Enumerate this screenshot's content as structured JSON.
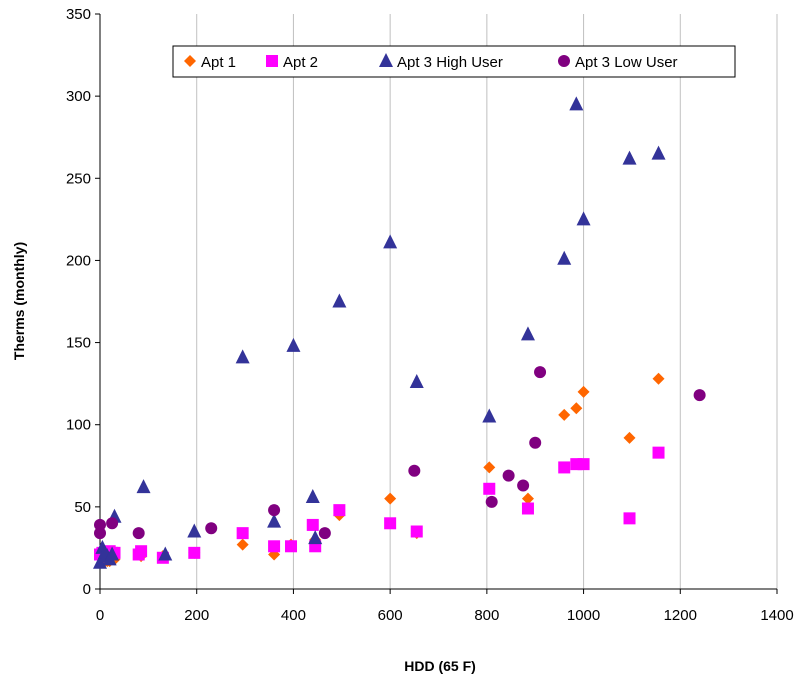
{
  "chart_data": {
    "type": "scatter",
    "xlabel": "HDD (65 F)",
    "ylabel": "Therms (monthly)",
    "xlim": [
      0,
      1400
    ],
    "ylim": [
      0,
      350
    ],
    "x_ticks": [
      0,
      200,
      400,
      600,
      800,
      1000,
      1200,
      1400
    ],
    "y_ticks": [
      0,
      50,
      100,
      150,
      200,
      250,
      300,
      350
    ],
    "x_tick_labels": [
      "0",
      "200",
      "400",
      "600",
      "800",
      "1000",
      "1200",
      "1400"
    ],
    "y_tick_labels": [
      "0",
      "50",
      "100",
      "150",
      "200",
      "250",
      "300",
      "350"
    ],
    "grid": "vertical",
    "legend_position": "top",
    "series": [
      {
        "name": "Apt 1",
        "marker": "diamond",
        "color": "#FF6600",
        "points": [
          [
            0,
            21
          ],
          [
            5,
            18
          ],
          [
            10,
            17
          ],
          [
            15,
            17
          ],
          [
            20,
            17
          ],
          [
            25,
            19
          ],
          [
            30,
            18
          ],
          [
            85,
            20
          ],
          [
            130,
            20
          ],
          [
            195,
            22
          ],
          [
            295,
            27
          ],
          [
            360,
            21
          ],
          [
            395,
            27
          ],
          [
            445,
            30
          ],
          [
            495,
            45
          ],
          [
            600,
            55
          ],
          [
            655,
            34
          ],
          [
            805,
            74
          ],
          [
            885,
            55
          ],
          [
            960,
            106
          ],
          [
            985,
            110
          ],
          [
            1000,
            120
          ],
          [
            1095,
            92
          ],
          [
            1155,
            128
          ]
        ]
      },
      {
        "name": "Apt 2",
        "marker": "square",
        "color": "#FF00FF",
        "points": [
          [
            0,
            21
          ],
          [
            5,
            22
          ],
          [
            10,
            21
          ],
          [
            15,
            20
          ],
          [
            20,
            23
          ],
          [
            25,
            22
          ],
          [
            30,
            22
          ],
          [
            80,
            21
          ],
          [
            85,
            23
          ],
          [
            130,
            19
          ],
          [
            195,
            22
          ],
          [
            295,
            34
          ],
          [
            360,
            26
          ],
          [
            395,
            26
          ],
          [
            440,
            39
          ],
          [
            445,
            26
          ],
          [
            495,
            48
          ],
          [
            600,
            40
          ],
          [
            655,
            35
          ],
          [
            805,
            61
          ],
          [
            885,
            49
          ],
          [
            960,
            74
          ],
          [
            985,
            76
          ],
          [
            1000,
            76
          ],
          [
            1095,
            43
          ],
          [
            1155,
            83
          ]
        ]
      },
      {
        "name": "Apt 3 High User",
        "marker": "triangle",
        "color": "#333399",
        "points": [
          [
            0,
            16
          ],
          [
            5,
            25
          ],
          [
            10,
            22
          ],
          [
            15,
            20
          ],
          [
            20,
            18
          ],
          [
            25,
            21
          ],
          [
            30,
            44
          ],
          [
            90,
            62
          ],
          [
            135,
            21
          ],
          [
            195,
            35
          ],
          [
            295,
            141
          ],
          [
            360,
            41
          ],
          [
            400,
            148
          ],
          [
            440,
            56
          ],
          [
            445,
            31
          ],
          [
            495,
            175
          ],
          [
            600,
            211
          ],
          [
            655,
            126
          ],
          [
            805,
            105
          ],
          [
            885,
            155
          ],
          [
            960,
            201
          ],
          [
            985,
            295
          ],
          [
            1000,
            225
          ],
          [
            1095,
            262
          ],
          [
            1155,
            265
          ]
        ]
      },
      {
        "name": "Apt 3 Low User",
        "marker": "circle",
        "color": "#800080",
        "points": [
          [
            0,
            39
          ],
          [
            0,
            34
          ],
          [
            25,
            40
          ],
          [
            80,
            34
          ],
          [
            230,
            37
          ],
          [
            360,
            48
          ],
          [
            465,
            34
          ],
          [
            650,
            72
          ],
          [
            810,
            53
          ],
          [
            845,
            69
          ],
          [
            875,
            63
          ],
          [
            900,
            89
          ],
          [
            910,
            132
          ],
          [
            1240,
            118
          ]
        ]
      }
    ]
  }
}
